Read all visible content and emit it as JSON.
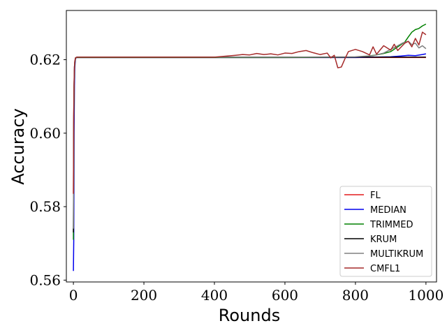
{
  "chart_data": {
    "type": "line",
    "title": "",
    "xlabel": "Rounds",
    "ylabel": "Accuracy",
    "xlim": [
      -20,
      1030
    ],
    "ylim": [
      0.5595,
      0.6334
    ],
    "xticks": [
      0,
      200,
      400,
      600,
      800,
      1000
    ],
    "xtick_labels": [
      "0",
      "200",
      "400",
      "600",
      "800",
      "1000"
    ],
    "yticks": [
      0.56,
      0.58,
      0.6,
      0.62
    ],
    "ytick_labels": [
      "0.56",
      "0.58",
      "0.60",
      "0.62"
    ],
    "grid": false,
    "legend_position": "lower-right",
    "series": [
      {
        "name": "FL",
        "color": "#e41a1c",
        "x": [
          0,
          1,
          2,
          3,
          4,
          6,
          10,
          50,
          200,
          400,
          600,
          800,
          900,
          950,
          1000
        ],
        "y": [
          0.5835,
          0.605,
          0.613,
          0.617,
          0.619,
          0.6205,
          0.6206,
          0.6206,
          0.6206,
          0.6206,
          0.6206,
          0.6206,
          0.6206,
          0.6206,
          0.6206
        ]
      },
      {
        "name": "MEDIAN",
        "color": "#0000ee",
        "x": [
          0,
          1,
          2,
          3,
          4,
          6,
          10,
          50,
          200,
          400,
          600,
          800,
          850,
          900,
          930,
          950,
          970,
          990,
          1000
        ],
        "y": [
          0.5625,
          0.571,
          0.6,
          0.613,
          0.618,
          0.6204,
          0.6206,
          0.6206,
          0.6206,
          0.6206,
          0.6206,
          0.6206,
          0.6207,
          0.6208,
          0.621,
          0.6212,
          0.6211,
          0.6214,
          0.6216
        ]
      },
      {
        "name": "TRIMMED",
        "color": "#008000",
        "x": [
          0,
          1,
          2,
          3,
          4,
          6,
          10,
          50,
          200,
          400,
          600,
          800,
          830,
          860,
          880,
          900,
          920,
          940,
          950,
          960,
          970,
          980,
          990,
          1000
        ],
        "y": [
          0.571,
          0.6,
          0.612,
          0.617,
          0.619,
          0.6205,
          0.6206,
          0.6206,
          0.6206,
          0.6206,
          0.6206,
          0.6207,
          0.6209,
          0.6213,
          0.6217,
          0.6222,
          0.6235,
          0.6248,
          0.6262,
          0.6275,
          0.6282,
          0.6285,
          0.6292,
          0.6297
        ]
      },
      {
        "name": "KRUM",
        "color": "#000000",
        "x": [
          0,
          1,
          2,
          3,
          4,
          6,
          10,
          50,
          200,
          400,
          600,
          800,
          1000
        ],
        "y": [
          0.573,
          0.603,
          0.613,
          0.618,
          0.6195,
          0.6205,
          0.6207,
          0.6207,
          0.6207,
          0.6207,
          0.6207,
          0.6207,
          0.6207
        ]
      },
      {
        "name": "MULTIKRUM",
        "color": "#808080",
        "x": [
          0,
          1,
          2,
          3,
          4,
          6,
          10,
          50,
          200,
          400,
          600,
          800,
          850,
          880,
          900,
          920,
          935,
          950,
          960,
          970,
          980,
          990,
          1000
        ],
        "y": [
          0.574,
          0.604,
          0.614,
          0.618,
          0.6195,
          0.6205,
          0.6207,
          0.6207,
          0.6207,
          0.6207,
          0.6207,
          0.6208,
          0.6211,
          0.6218,
          0.6228,
          0.6238,
          0.6246,
          0.625,
          0.6241,
          0.6245,
          0.6232,
          0.6238,
          0.623
        ]
      },
      {
        "name": "CMFL1",
        "color": "#a52a2a",
        "x": [
          0,
          1,
          2,
          3,
          4,
          6,
          10,
          50,
          200,
          400,
          460,
          480,
          500,
          520,
          540,
          560,
          580,
          600,
          620,
          640,
          660,
          680,
          700,
          720,
          730,
          740,
          750,
          760,
          770,
          780,
          800,
          820,
          840,
          850,
          860,
          880,
          900,
          910,
          920,
          940,
          950,
          960,
          970,
          980,
          990,
          1000
        ],
        "y": [
          0.5835,
          0.606,
          0.614,
          0.618,
          0.6195,
          0.6205,
          0.6207,
          0.6207,
          0.6207,
          0.6207,
          0.6212,
          0.6214,
          0.6213,
          0.6217,
          0.6214,
          0.6216,
          0.6213,
          0.6218,
          0.6217,
          0.6222,
          0.6225,
          0.6219,
          0.6214,
          0.6218,
          0.6205,
          0.6212,
          0.6178,
          0.618,
          0.6202,
          0.6222,
          0.6228,
          0.6222,
          0.6213,
          0.6235,
          0.6215,
          0.6238,
          0.6226,
          0.6242,
          0.6225,
          0.6245,
          0.625,
          0.6235,
          0.6258,
          0.624,
          0.6275,
          0.6268
        ]
      }
    ]
  }
}
